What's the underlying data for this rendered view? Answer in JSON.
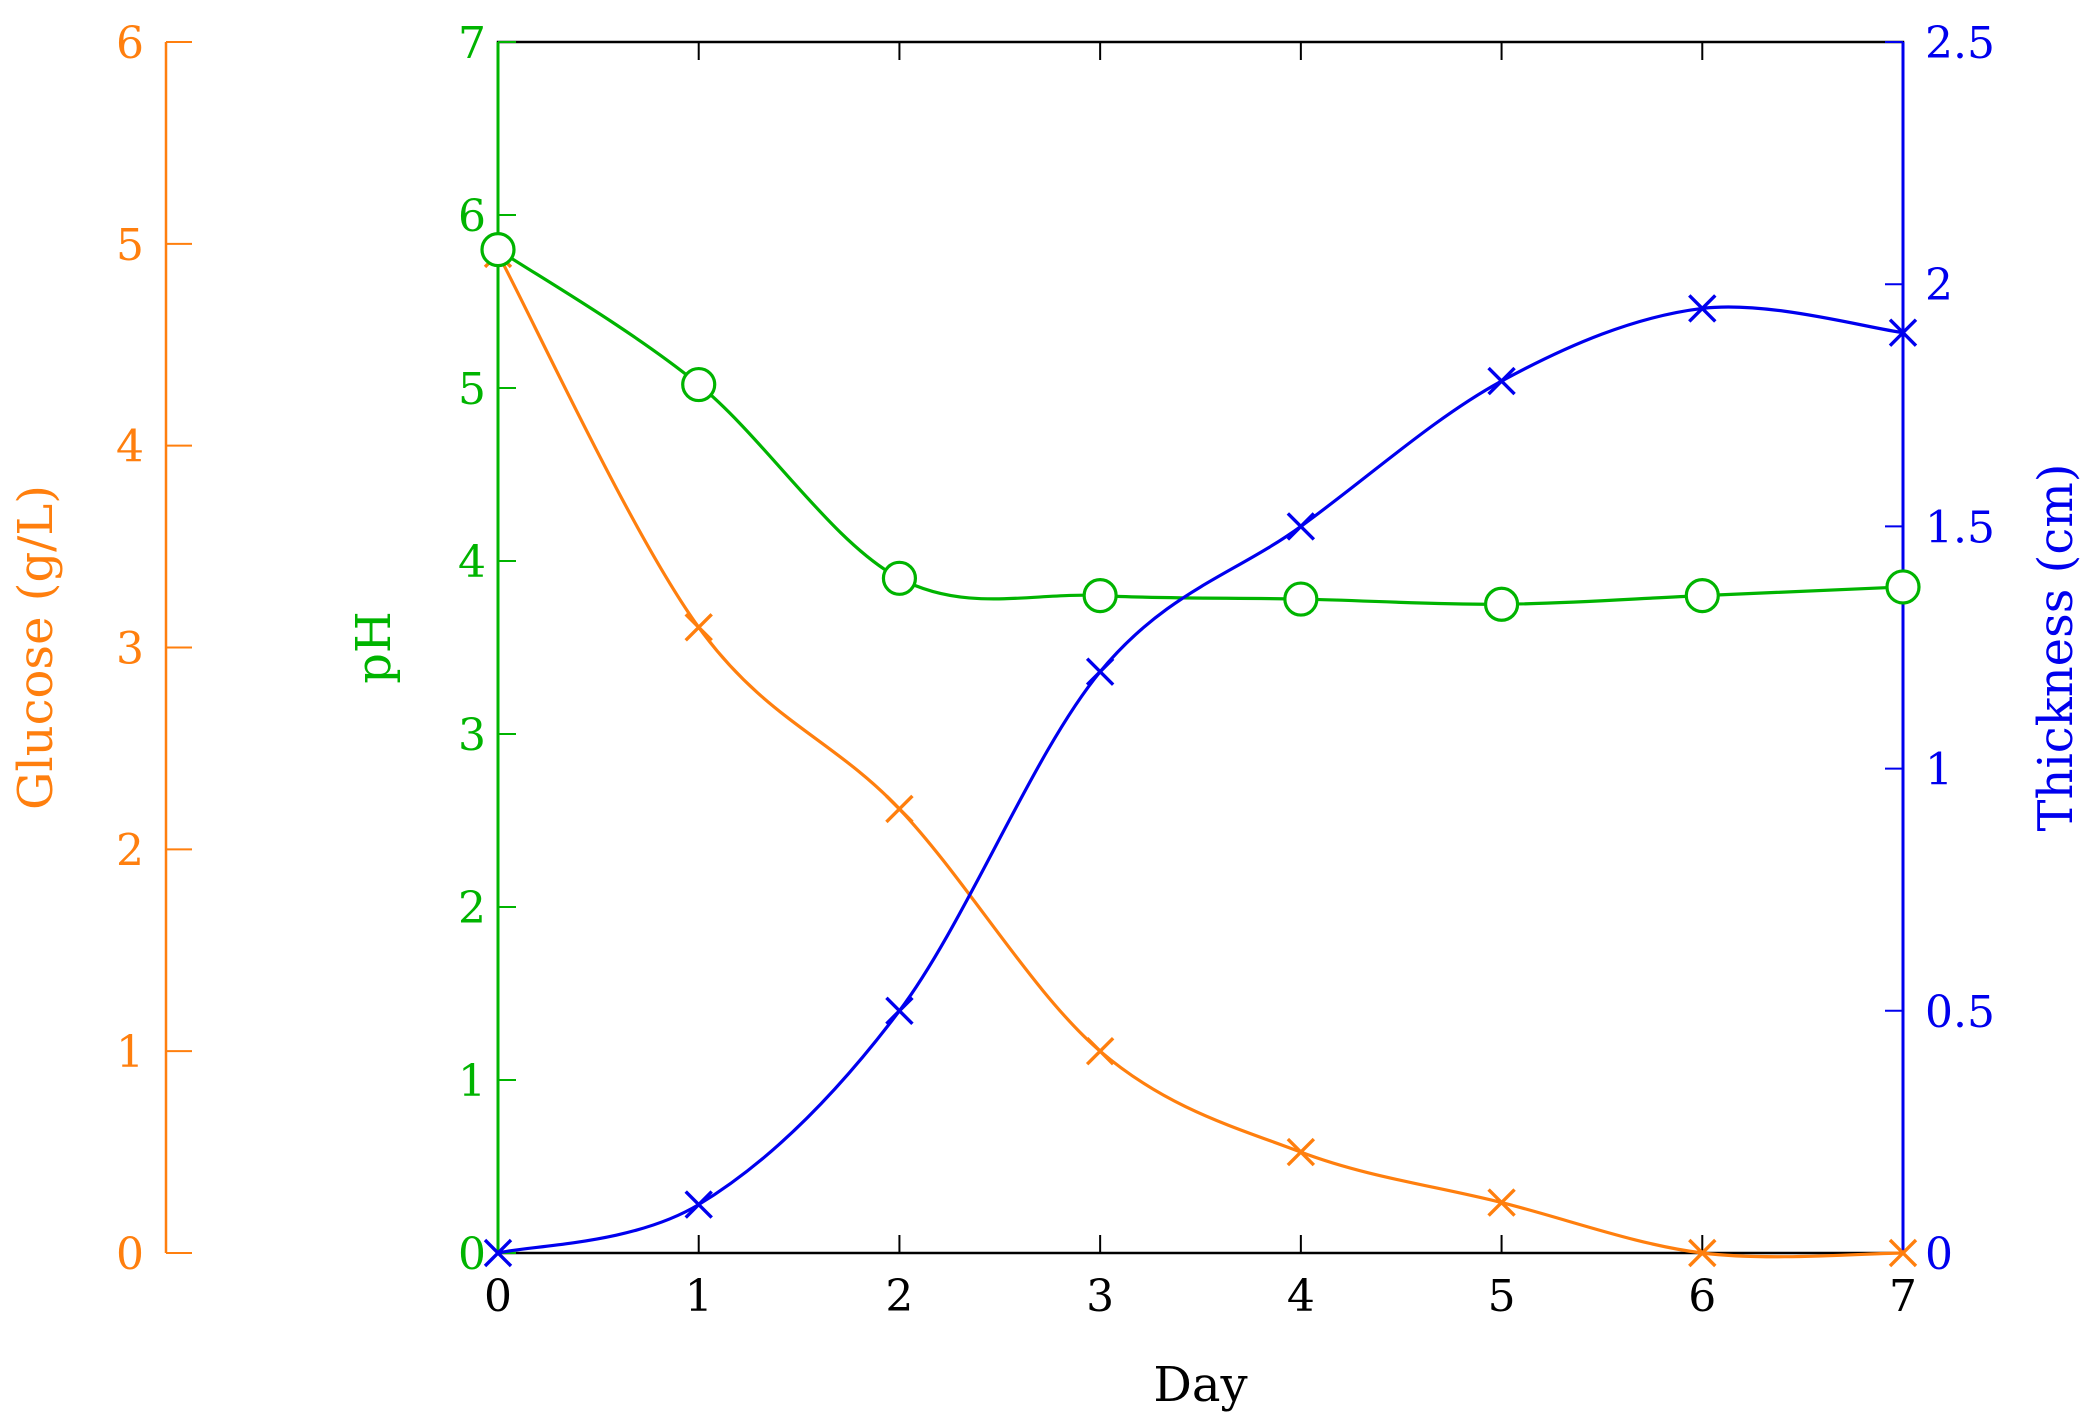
{
  "chart_data": {
    "type": "line",
    "xlabel": "Day",
    "x_ticks": [
      0,
      1,
      2,
      3,
      4,
      5,
      6,
      7
    ],
    "xlim": [
      0,
      7
    ],
    "axes": {
      "glucose": {
        "label": "Glucose (g/L)",
        "lim": [
          0,
          6
        ],
        "ticks": [
          0,
          1,
          2,
          3,
          4,
          5,
          6
        ],
        "color": "#ff7f0e",
        "position": "far-left"
      },
      "ph": {
        "label": "pH",
        "lim": [
          0,
          7
        ],
        "ticks": [
          0,
          1,
          2,
          3,
          4,
          5,
          6,
          7
        ],
        "color": "#00b400",
        "position": "left"
      },
      "thickness": {
        "label": "Thickness (cm)",
        "lim": [
          0,
          2.5
        ],
        "ticks": [
          0,
          0.5,
          1,
          1.5,
          2,
          2.5
        ],
        "color": "#0000ee",
        "position": "right"
      }
    },
    "series": [
      {
        "axis": "glucose",
        "marker": "x",
        "color": "#ff7f0e",
        "x": [
          0,
          1,
          2,
          3,
          4,
          5,
          6,
          7
        ],
        "values": [
          4.95,
          3.1,
          2.2,
          1.0,
          0.5,
          0.25,
          0.0,
          0.0
        ]
      },
      {
        "axis": "ph",
        "marker": "o",
        "color": "#00b400",
        "x": [
          0,
          1,
          2,
          3,
          4,
          5,
          6,
          7
        ],
        "values": [
          5.8,
          5.02,
          3.9,
          3.8,
          3.78,
          3.75,
          3.8,
          3.85
        ]
      },
      {
        "axis": "thickness",
        "marker": "x",
        "color": "#0000ee",
        "x": [
          0,
          1,
          2,
          3,
          4,
          5,
          6,
          7
        ],
        "values": [
          0.0,
          0.1,
          0.5,
          1.2,
          1.5,
          1.8,
          1.95,
          1.9
        ]
      }
    ]
  }
}
